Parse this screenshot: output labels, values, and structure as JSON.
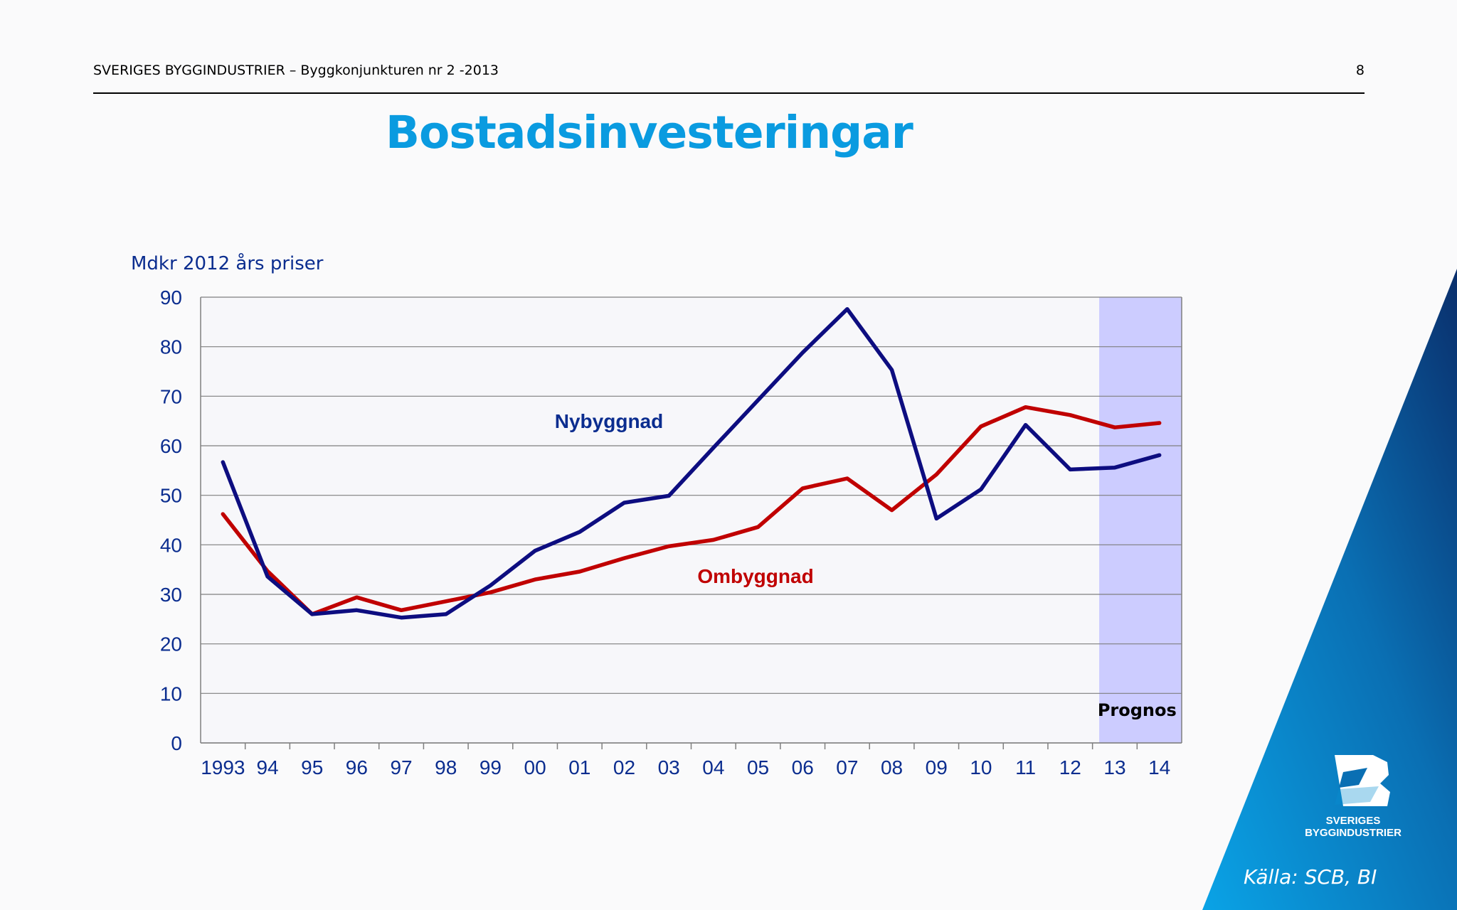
{
  "header": {
    "title": "SVERIGES BYGGINDUSTRIER – Byggkonjunkturen nr 2 -2013",
    "page_number": "8"
  },
  "slide_title": "Bostadsinvesteringar",
  "unit_label": "Mdkr 2012 års priser",
  "source": "Källa: SCB, BI",
  "logo": {
    "line1": "SVERIGES",
    "line2": "BYGGINDUSTRIER"
  },
  "colors": {
    "title": "#0a9be0",
    "axis_text": "#0b2d8f",
    "nybyggnad": "#0d0d80",
    "ombyggnad": "#c00000",
    "forecast_band": "#ccccff",
    "corner_dark": "#0a2f6c",
    "corner_light": "#0aa3e6"
  },
  "chart_data": {
    "type": "line",
    "categories": [
      "1993",
      "94",
      "95",
      "96",
      "97",
      "98",
      "99",
      "00",
      "01",
      "02",
      "03",
      "04",
      "05",
      "06",
      "07",
      "08",
      "09",
      "10",
      "11",
      "12",
      "13",
      "14"
    ],
    "ylim": [
      0,
      90
    ],
    "yticks": [
      0,
      10,
      20,
      30,
      40,
      50,
      60,
      70,
      80,
      90
    ],
    "grid": true,
    "series": [
      {
        "name": "Nybyggnad",
        "values": [
          56.7,
          33.6,
          26.0,
          26.8,
          25.3,
          26.0,
          31.8,
          38.8,
          42.6,
          48.5,
          49.9,
          59.6,
          69.2,
          78.8,
          87.6,
          75.3,
          45.3,
          51.2,
          64.2,
          55.2,
          55.6,
          58.1
        ]
      },
      {
        "name": "Ombyggnad",
        "values": [
          46.2,
          34.7,
          26.0,
          29.4,
          26.8,
          28.6,
          30.4,
          33.0,
          34.6,
          37.3,
          39.7,
          41.0,
          43.6,
          51.4,
          53.4,
          47.0,
          54.2,
          63.9,
          67.8,
          66.2,
          63.7,
          64.6
        ]
      }
    ],
    "forecast": {
      "label": "Prognos",
      "from_category": "13",
      "to_category": "14"
    }
  }
}
